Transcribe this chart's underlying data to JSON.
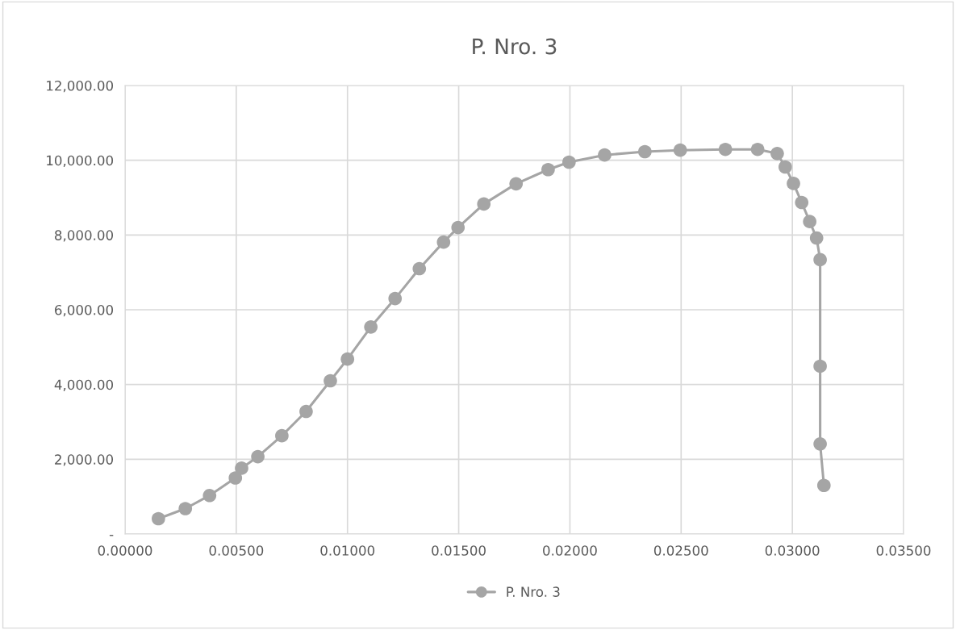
{
  "chart_data": {
    "type": "line",
    "title": "P. Nro. 3",
    "x": [
      0.0015,
      0.00271,
      0.0038,
      0.00496,
      0.00524,
      0.00597,
      0.00705,
      0.00814,
      0.00923,
      0.01,
      0.01105,
      0.01214,
      0.01323,
      0.01432,
      0.01497,
      0.01613,
      0.01758,
      0.01902,
      0.01996,
      0.02156,
      0.02337,
      0.02496,
      0.02699,
      0.02844,
      0.02932,
      0.02968,
      0.03005,
      0.03042,
      0.03078,
      0.03109,
      0.03125,
      0.03125,
      0.03125,
      0.03142
    ],
    "series": [
      {
        "name": "P. Nro. 3",
        "color": "#a5a5a5",
        "values": [
          410,
          680,
          1030,
          1500,
          1760,
          2070,
          2630,
          3280,
          4100,
          4680,
          5540,
          6300,
          7100,
          7810,
          8200,
          8830,
          9370,
          9750,
          9950,
          10140,
          10230,
          10270,
          10290,
          10290,
          10180,
          9820,
          9380,
          8870,
          8360,
          7920,
          7340,
          4490,
          2410,
          1300
        ]
      }
    ],
    "xlim": [
      0,
      0.035
    ],
    "ylim": [
      0,
      12000
    ],
    "xticks": [
      {
        "value": 0,
        "label": "0.00000"
      },
      {
        "value": 0.005,
        "label": "0.00500"
      },
      {
        "value": 0.01,
        "label": "0.01000"
      },
      {
        "value": 0.015,
        "label": "0.01500"
      },
      {
        "value": 0.02,
        "label": "0.02000"
      },
      {
        "value": 0.025,
        "label": "0.02500"
      },
      {
        "value": 0.03,
        "label": "0.03000"
      },
      {
        "value": 0.035,
        "label": "0.03500"
      }
    ],
    "yticks": [
      {
        "value": 0,
        "label": "-"
      },
      {
        "value": 2000,
        "label": "2,000.00"
      },
      {
        "value": 4000,
        "label": "4,000.00"
      },
      {
        "value": 6000,
        "label": "6,000.00"
      },
      {
        "value": 8000,
        "label": "8,000.00"
      },
      {
        "value": 10000,
        "label": "10,000.00"
      },
      {
        "value": 12000,
        "label": "12,000.00"
      }
    ],
    "grid": true,
    "legend": "bottom",
    "marker": "circle",
    "line_style": "solid"
  }
}
